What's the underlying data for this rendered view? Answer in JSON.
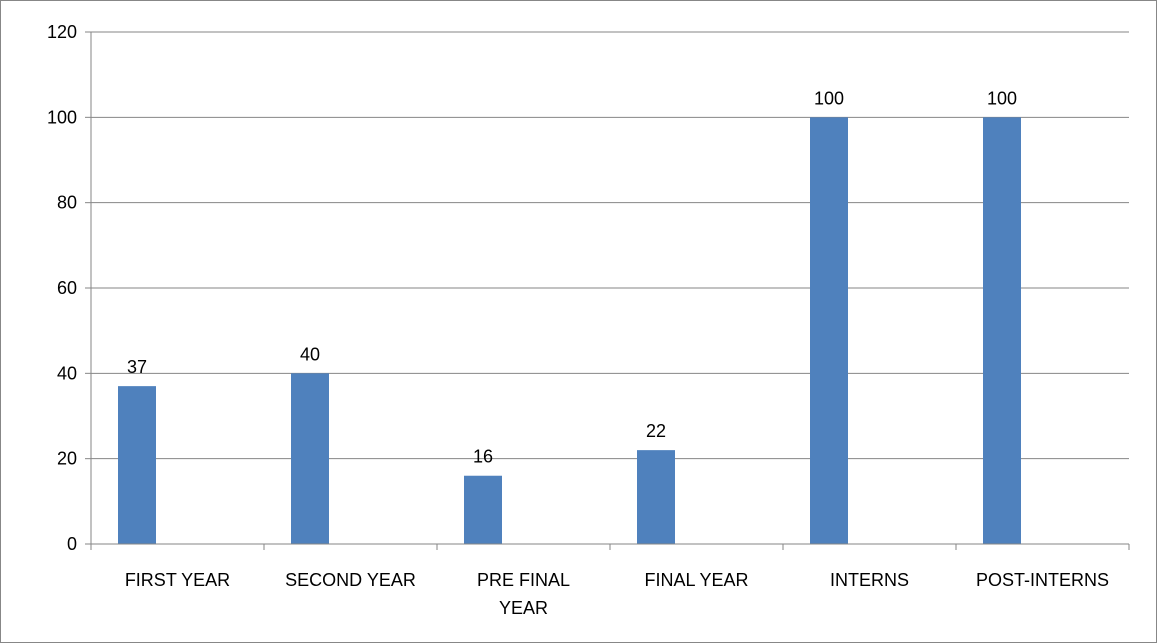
{
  "chart_data": {
    "type": "bar",
    "categories": [
      [
        "FIRST YEAR"
      ],
      [
        "SECOND YEAR"
      ],
      [
        "PRE FINAL",
        "YEAR"
      ],
      [
        "FINAL YEAR"
      ],
      [
        "INTERNS"
      ],
      [
        "POST-INTERNS"
      ]
    ],
    "values": [
      37,
      40,
      16,
      22,
      100,
      100
    ],
    "data_labels": [
      "37",
      "40",
      "16",
      "22",
      "100",
      "100"
    ],
    "title": "",
    "xlabel": "",
    "ylabel": "",
    "ylim": [
      0,
      120
    ],
    "yticks": [
      "0",
      "20",
      "40",
      "60",
      "80",
      "100",
      "120"
    ],
    "grid": true,
    "legend": "none",
    "bar_color": "#4f81bd",
    "grid_color": "#868686"
  }
}
